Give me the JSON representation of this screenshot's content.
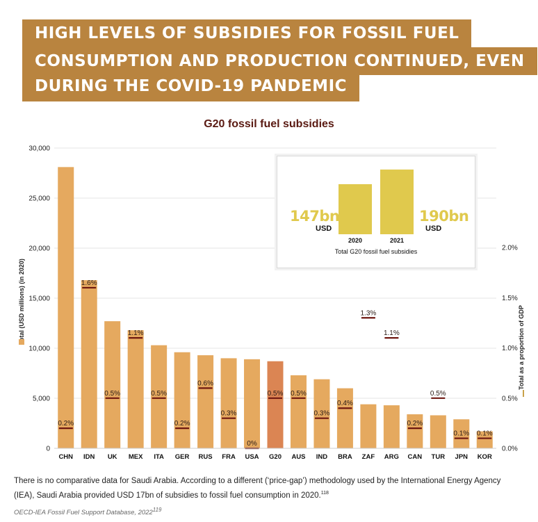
{
  "banner": {
    "line1": "HIGH LEVELS OF SUBSIDIES FOR FOSSIL FUEL",
    "line2": "CONSUMPTION AND PRODUCTION CONTINUED, EVEN",
    "line3": "DURING THE COVID-19 PANDEMIC"
  },
  "colors": {
    "banner": "#b9843f",
    "bar": "#e5a95f",
    "bar_highlight": "#db8553",
    "gdp_marker": "#6e1710",
    "title": "#5a1a12",
    "inset_bar": "#e0c94d"
  },
  "chart_data": [
    {
      "type": "bar",
      "title": "G20 fossil fuel subsidies",
      "ylabel": "Total (USD millions) (in 2020)",
      "y2label": "Total as a proportion of GDP",
      "ylim": [
        0,
        30000
      ],
      "y2lim": [
        0,
        2.5
      ],
      "yticks": [
        "0",
        "5,000",
        "10,000",
        "15,000",
        "20,000",
        "25,000",
        "30,000"
      ],
      "y2ticks": [
        "0.0%",
        "0.5%",
        "1.0%",
        "1.5%",
        "2.0%"
      ],
      "grid": true,
      "highlight": "G20",
      "categories": [
        "CHN",
        "IDN",
        "UK",
        "MEX",
        "ITA",
        "GER",
        "RUS",
        "FRA",
        "USA",
        "G20",
        "AUS",
        "IND",
        "BRA",
        "ZAF",
        "ARG",
        "CAN",
        "TUR",
        "JPN",
        "KOR"
      ],
      "series": [
        {
          "values": [
            28100,
            16800,
            12700,
            11800,
            10300,
            9600,
            9300,
            9000,
            8900,
            8700,
            7300,
            6900,
            6000,
            4400,
            4300,
            3400,
            3300,
            2900,
            1700
          ]
        },
        {
          "values": [
            0.2,
            1.6,
            0.5,
            1.1,
            0.5,
            0.2,
            0.6,
            0.3,
            0.0,
            0.5,
            0.5,
            0.3,
            0.4,
            1.3,
            1.1,
            0.2,
            0.5,
            0.1,
            0.1
          ],
          "labels": [
            "0.2%",
            "1.6%",
            "0.5%",
            "1.1%",
            "0.5%",
            "0.2%",
            "0.6%",
            "0.3%",
            "0%",
            "0.5%",
            "0.5%",
            "0.3%",
            "0.4%",
            "1.3%",
            "1.1%",
            "0.2%",
            "0.5%",
            "0.1%",
            "0.1%"
          ]
        }
      ]
    },
    {
      "type": "bar",
      "title": "Total G20 fossil fuel subsidies",
      "categories": [
        "2020",
        "2021"
      ],
      "values": [
        147,
        190
      ],
      "labels": [
        "147bn",
        "190bn"
      ],
      "unit": "USD"
    }
  ],
  "footnote": "There is no comparative data for Saudi Arabia. According to a different (‘price-gap’) methodology used by the International Energy Agency (IEA), Saudi Arabia provided USD 17bn of subsidies to fossil fuel consumption in 2020.",
  "footnote_ref": "118",
  "source": "OECD-IEA Fossil Fuel Support Database, 2022",
  "source_ref": "119"
}
